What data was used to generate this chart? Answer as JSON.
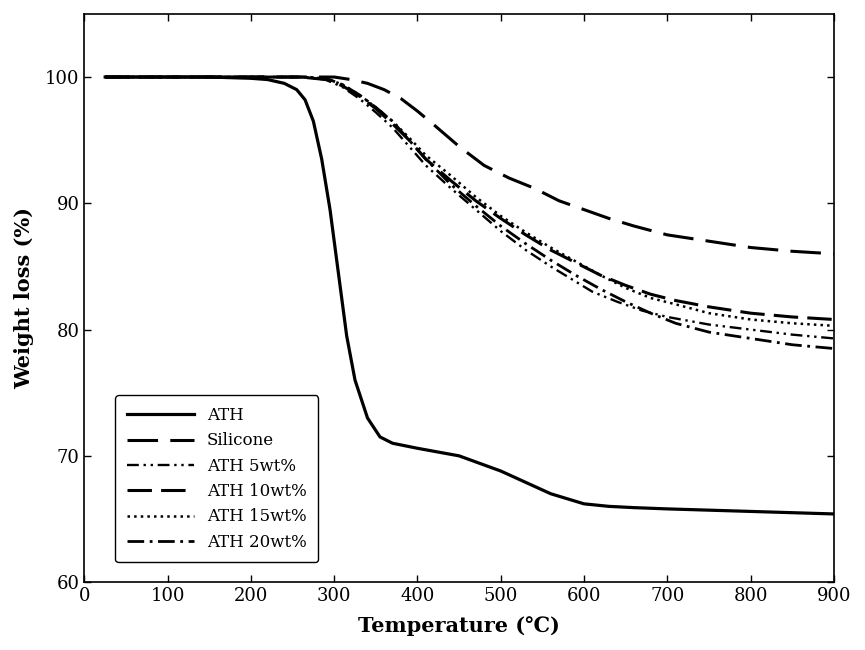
{
  "title": "",
  "xlabel": "Temperature (℃)",
  "ylabel": "Weight loss (%)",
  "xlim": [
    0,
    900
  ],
  "ylim": [
    60,
    105
  ],
  "yticks": [
    60,
    70,
    80,
    90,
    100
  ],
  "xticks": [
    0,
    100,
    200,
    300,
    400,
    500,
    600,
    700,
    800,
    900
  ],
  "series": {
    "ATH": {
      "lw": 2.3,
      "ls": "solid",
      "dashes": null,
      "x": [
        25,
        150,
        200,
        220,
        240,
        255,
        265,
        275,
        285,
        295,
        305,
        315,
        325,
        340,
        355,
        370,
        385,
        400,
        450,
        500,
        560,
        600,
        630,
        660,
        700,
        750,
        800,
        850,
        900
      ],
      "y": [
        100,
        100,
        99.9,
        99.8,
        99.5,
        99.0,
        98.2,
        96.5,
        93.5,
        89.5,
        84.5,
        79.5,
        76.0,
        73.0,
        71.5,
        71.0,
        70.8,
        70.6,
        70.0,
        68.8,
        67.0,
        66.2,
        66.0,
        65.9,
        65.8,
        65.7,
        65.6,
        65.5,
        65.4
      ]
    },
    "Silicone": {
      "lw": 2.2,
      "ls": "dashed",
      "dashes": [
        10,
        4
      ],
      "x": [
        25,
        200,
        250,
        280,
        300,
        320,
        340,
        360,
        380,
        400,
        420,
        450,
        480,
        510,
        540,
        570,
        600,
        630,
        660,
        700,
        750,
        800,
        850,
        900
      ],
      "y": [
        100,
        100,
        100,
        100,
        100,
        99.8,
        99.5,
        99.0,
        98.3,
        97.3,
        96.2,
        94.5,
        93.0,
        92.0,
        91.2,
        90.2,
        89.5,
        88.8,
        88.2,
        87.5,
        87.0,
        86.5,
        86.2,
        86.0
      ]
    },
    "ATH 5wt%": {
      "lw": 1.7,
      "ls": "dashdotdotted",
      "dashes": [
        5,
        2,
        1,
        2,
        1,
        2
      ],
      "x": [
        25,
        200,
        260,
        290,
        310,
        330,
        350,
        370,
        390,
        410,
        440,
        470,
        500,
        530,
        560,
        590,
        610,
        640,
        670,
        700,
        750,
        800,
        850,
        900
      ],
      "y": [
        100,
        100,
        100,
        99.8,
        99.2,
        98.3,
        97.2,
        96.0,
        94.5,
        93.0,
        91.2,
        89.5,
        87.8,
        86.3,
        85.0,
        83.8,
        83.0,
        82.2,
        81.5,
        81.0,
        80.4,
        80.0,
        79.6,
        79.3
      ]
    },
    "ATH 10wt%": {
      "lw": 2.2,
      "ls": "dashed",
      "dashes": [
        8,
        3
      ],
      "x": [
        25,
        200,
        260,
        290,
        310,
        330,
        350,
        370,
        390,
        410,
        440,
        470,
        500,
        530,
        560,
        590,
        620,
        650,
        680,
        710,
        750,
        800,
        850,
        900
      ],
      "y": [
        100,
        100,
        100,
        99.8,
        99.3,
        98.5,
        97.5,
        96.3,
        95.0,
        93.5,
        91.8,
        90.2,
        88.8,
        87.5,
        86.3,
        85.3,
        84.3,
        83.5,
        82.8,
        82.3,
        81.8,
        81.3,
        81.0,
        80.8
      ]
    },
    "ATH 15wt%": {
      "lw": 1.8,
      "ls": "dotted",
      "dashes": null,
      "x": [
        25,
        200,
        260,
        290,
        310,
        330,
        350,
        370,
        390,
        410,
        440,
        470,
        500,
        530,
        560,
        590,
        620,
        650,
        680,
        710,
        750,
        800,
        850,
        900
      ],
      "y": [
        100,
        100,
        100,
        99.9,
        99.4,
        98.6,
        97.6,
        96.5,
        95.2,
        93.8,
        92.2,
        90.5,
        89.0,
        87.7,
        86.5,
        85.4,
        84.3,
        83.3,
        82.5,
        82.0,
        81.3,
        80.8,
        80.5,
        80.3
      ]
    },
    "ATH 20wt%": {
      "lw": 2.0,
      "ls": "dashdot",
      "dashes": [
        6,
        2,
        1,
        2
      ],
      "x": [
        25,
        200,
        260,
        290,
        310,
        330,
        350,
        370,
        390,
        410,
        440,
        470,
        500,
        530,
        560,
        590,
        620,
        650,
        680,
        710,
        750,
        800,
        850,
        900
      ],
      "y": [
        100,
        100,
        100,
        99.9,
        99.4,
        98.6,
        97.6,
        96.5,
        95.0,
        93.5,
        91.5,
        89.8,
        88.2,
        86.8,
        85.5,
        84.3,
        83.2,
        82.2,
        81.3,
        80.5,
        79.8,
        79.3,
        78.8,
        78.5
      ]
    }
  },
  "legend_order": [
    "ATH",
    "Silicone",
    "ATH 5wt%",
    "ATH 10wt%",
    "ATH 15wt%",
    "ATH 20wt%"
  ],
  "font_family": "serif",
  "axis_label_fontsize": 15,
  "tick_fontsize": 13,
  "legend_fontsize": 12
}
